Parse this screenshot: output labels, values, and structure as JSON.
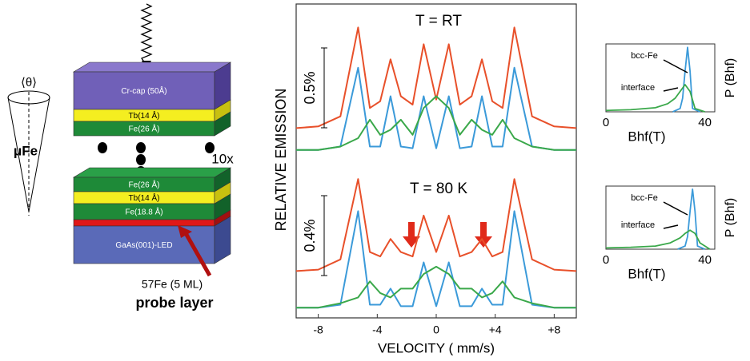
{
  "diagram": {
    "layers": [
      "Cr-cap (50Å)",
      "Tb(14 Å)",
      "Fe(26 Å)",
      "Fe(26 Å)",
      "Tb(14 Å)",
      "Fe(18.8 Å)",
      "GaAs(001)-LED"
    ],
    "repeat": "10x",
    "angle": "⟨θ⟩",
    "moment": "μFe",
    "probe": "57Fe (5 ML)",
    "probe_label": "probe layer"
  },
  "chart_data": [
    {
      "type": "line",
      "title": "T = RT",
      "annotation": "0.5%",
      "ylabel": "RELATIVE EMISSION",
      "xlim": [
        -9.5,
        9.5
      ],
      "ylim": [
        0,
        1
      ],
      "x": [
        -9.5,
        -8,
        -6.5,
        -5.3,
        -4.5,
        -3.8,
        -3.1,
        -2.4,
        -1.6,
        -0.85,
        0,
        0.85,
        1.6,
        2.4,
        3.1,
        3.8,
        4.5,
        5.3,
        6.5,
        8,
        9.5
      ],
      "series": [
        {
          "color": "#e8502a",
          "values": [
            0.26,
            0.27,
            0.33,
            0.86,
            0.38,
            0.42,
            0.67,
            0.45,
            0.4,
            0.76,
            0.43,
            0.76,
            0.4,
            0.45,
            0.67,
            0.42,
            0.38,
            0.86,
            0.33,
            0.27,
            0.26
          ]
        },
        {
          "color": "#3b9ad9",
          "values": [
            0.13,
            0.13,
            0.15,
            0.62,
            0.15,
            0.15,
            0.45,
            0.15,
            0.14,
            0.45,
            0.14,
            0.45,
            0.14,
            0.15,
            0.45,
            0.15,
            0.15,
            0.62,
            0.15,
            0.13,
            0.13
          ]
        },
        {
          "color": "#3aa84a",
          "values": [
            0.13,
            0.13,
            0.15,
            0.2,
            0.31,
            0.22,
            0.25,
            0.31,
            0.22,
            0.38,
            0.45,
            0.38,
            0.22,
            0.31,
            0.25,
            0.22,
            0.31,
            0.2,
            0.15,
            0.13,
            0.13
          ]
        }
      ]
    },
    {
      "type": "line",
      "title": "T = 80 K",
      "annotation": "0.4%",
      "xlabel": "VELOCITY ( mm/s)",
      "xlim": [
        -9.5,
        9.5
      ],
      "ylim": [
        0,
        1
      ],
      "xticks": [
        {
          "value": -8,
          "label": "-8"
        },
        {
          "value": -4,
          "label": "-4"
        },
        0,
        {
          "value": 4,
          "label": "+4"
        },
        {
          "value": 8,
          "label": "+8"
        }
      ],
      "x": [
        -9.5,
        -8,
        -6.5,
        -5.3,
        -4.5,
        -3.8,
        -3.1,
        -2.4,
        -1.6,
        -0.85,
        0,
        0.85,
        1.6,
        2.4,
        3.1,
        3.8,
        4.5,
        5.3,
        6.5,
        8,
        9.5
      ],
      "series": [
        {
          "color": "#e8502a",
          "values": [
            0.32,
            0.33,
            0.4,
            0.95,
            0.45,
            0.42,
            0.54,
            0.45,
            0.42,
            0.7,
            0.45,
            0.7,
            0.42,
            0.45,
            0.54,
            0.42,
            0.45,
            0.95,
            0.4,
            0.33,
            0.32
          ]
        },
        {
          "color": "#3b9ad9",
          "values": [
            0.07,
            0.07,
            0.09,
            0.73,
            0.09,
            0.09,
            0.2,
            0.08,
            0.08,
            0.38,
            0.08,
            0.38,
            0.08,
            0.08,
            0.2,
            0.09,
            0.09,
            0.73,
            0.09,
            0.07,
            0.07
          ]
        },
        {
          "color": "#3aa84a",
          "values": [
            0.07,
            0.07,
            0.1,
            0.14,
            0.25,
            0.17,
            0.14,
            0.2,
            0.2,
            0.3,
            0.35,
            0.3,
            0.2,
            0.2,
            0.14,
            0.17,
            0.25,
            0.14,
            0.1,
            0.07,
            0.07
          ]
        }
      ]
    },
    {
      "type": "line",
      "xlabel": "Bhf(T)",
      "ylabel": "P (Bhf)",
      "annotations": [
        "bcc-Fe",
        "interface"
      ],
      "xlim": [
        0,
        44
      ],
      "ylim": [
        0,
        1
      ],
      "xticks": [
        0,
        40
      ],
      "series": [
        {
          "color": "#3b9ad9",
          "x": [
            27,
            30,
            31,
            32,
            33,
            34,
            35,
            38
          ],
          "values": [
            0,
            0.05,
            0.2,
            0.6,
            0.95,
            0.6,
            0.05,
            0
          ]
        },
        {
          "color": "#3aa84a",
          "x": [
            0,
            10,
            20,
            25,
            28,
            30,
            32,
            34,
            36,
            40
          ],
          "values": [
            0.02,
            0.03,
            0.06,
            0.12,
            0.2,
            0.3,
            0.4,
            0.3,
            0.05,
            0
          ]
        }
      ]
    },
    {
      "type": "line",
      "xlabel": "Bhf(T)",
      "ylabel": "P (Bhf)",
      "annotations": [
        "bcc-Fe",
        "interface"
      ],
      "xlim": [
        0,
        44
      ],
      "ylim": [
        0,
        1
      ],
      "xticks": [
        0,
        40
      ],
      "series": [
        {
          "color": "#3b9ad9",
          "x": [
            29,
            32,
            33,
            34,
            35,
            36,
            37,
            40
          ],
          "values": [
            0,
            0.05,
            0.2,
            0.6,
            0.95,
            0.6,
            0.05,
            0
          ]
        },
        {
          "color": "#3aa84a",
          "x": [
            0,
            10,
            20,
            26,
            30,
            32,
            34,
            36,
            38,
            42
          ],
          "values": [
            0.02,
            0.03,
            0.05,
            0.1,
            0.18,
            0.25,
            0.3,
            0.25,
            0.1,
            0
          ]
        }
      ]
    }
  ]
}
